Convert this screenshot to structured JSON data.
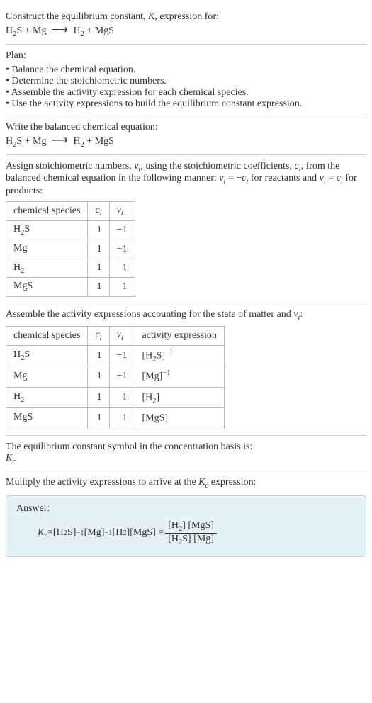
{
  "intro": {
    "line1_prefix": "Construct the equilibrium constant, ",
    "K": "K",
    "line1_suffix": ", expression for:",
    "equation_lhs1": "H",
    "equation_lhs1_sub": "2",
    "equation_lhs1_tail": "S + Mg",
    "equation_rhs1": "H",
    "equation_rhs1_sub": "2",
    "equation_rhs1_tail": " + MgS"
  },
  "plan": {
    "title": "Plan:",
    "items": [
      "Balance the chemical equation.",
      "Determine the stoichiometric numbers.",
      "Assemble the activity expression for each chemical species.",
      "Use the activity expressions to build the equilibrium constant expression."
    ]
  },
  "balanced": {
    "title": "Write the balanced chemical equation:"
  },
  "stoich": {
    "text_a": "Assign stoichiometric numbers, ",
    "nu_i": "ν",
    "nu_i_sub": "i",
    "text_b": ", using the stoichiometric coefficients, ",
    "c_i": "c",
    "c_i_sub": "i",
    "text_c": ", from the balanced chemical equation in the following manner: ",
    "eq1_lhs": "ν",
    "eq1_lhs_sub": "i",
    "eq1_mid": " = −",
    "eq1_rhs": "c",
    "eq1_rhs_sub": "i",
    "text_d": " for reactants and ",
    "eq2_lhs": "ν",
    "eq2_lhs_sub": "i",
    "eq2_mid": " = ",
    "eq2_rhs": "c",
    "eq2_rhs_sub": "i",
    "text_e": " for products:",
    "headers": {
      "species": "chemical species",
      "ci_sym": "c",
      "ci_sub": "i",
      "nui_sym": "ν",
      "nui_sub": "i"
    },
    "rows": [
      {
        "species_a": "H",
        "species_sub": "2",
        "species_b": "S",
        "ci": "1",
        "nui": "−1"
      },
      {
        "species_a": "Mg",
        "species_sub": "",
        "species_b": "",
        "ci": "1",
        "nui": "−1"
      },
      {
        "species_a": "H",
        "species_sub": "2",
        "species_b": "",
        "ci": "1",
        "nui": "1"
      },
      {
        "species_a": "MgS",
        "species_sub": "",
        "species_b": "",
        "ci": "1",
        "nui": "1"
      }
    ]
  },
  "activity": {
    "text_a": "Assemble the activity expressions accounting for the state of matter and ",
    "nu_i": "ν",
    "nu_i_sub": "i",
    "text_b": ":",
    "header_activity": "activity expression",
    "rows": [
      {
        "species_a": "H",
        "species_sub": "2",
        "species_b": "S",
        "ci": "1",
        "nui": "−1",
        "act_a": "[H",
        "act_sub": "2",
        "act_b": "S]",
        "act_sup": "−1"
      },
      {
        "species_a": "Mg",
        "species_sub": "",
        "species_b": "",
        "ci": "1",
        "nui": "−1",
        "act_a": "[Mg]",
        "act_sub": "",
        "act_b": "",
        "act_sup": "−1"
      },
      {
        "species_a": "H",
        "species_sub": "2",
        "species_b": "",
        "ci": "1",
        "nui": "1",
        "act_a": "[H",
        "act_sub": "2",
        "act_b": "]",
        "act_sup": ""
      },
      {
        "species_a": "MgS",
        "species_sub": "",
        "species_b": "",
        "ci": "1",
        "nui": "1",
        "act_a": "[MgS]",
        "act_sub": "",
        "act_b": "",
        "act_sup": ""
      }
    ]
  },
  "symbol": {
    "text": "The equilibrium constant symbol in the concentration basis is:",
    "Kc": "K",
    "Kc_sub": "c"
  },
  "multiply": {
    "text_a": "Mulitply the activity expressions to arrive at the ",
    "Kc": "K",
    "Kc_sub": "c",
    "text_b": " expression:"
  },
  "answer": {
    "label": "Answer:",
    "Kc": "K",
    "Kc_sub": "c",
    "eq": " = ",
    "t1_a": "[H",
    "t1_sub": "2",
    "t1_b": "S]",
    "t1_sup": "−1",
    "t2_a": " [Mg]",
    "t2_sup": "−1",
    "t3_a": " [H",
    "t3_sub": "2",
    "t3_b": "]",
    "t4": " [MgS] = ",
    "num_a": "[H",
    "num_sub": "2",
    "num_b": "] [MgS]",
    "den_a": "[H",
    "den_sub": "2",
    "den_b": "S] [Mg]"
  },
  "colors": {
    "text": "#333333",
    "border": "#bbbbbb",
    "hr": "#cccccc",
    "answer_bg": "#e4f1f7",
    "answer_border": "#b5d6e6"
  }
}
